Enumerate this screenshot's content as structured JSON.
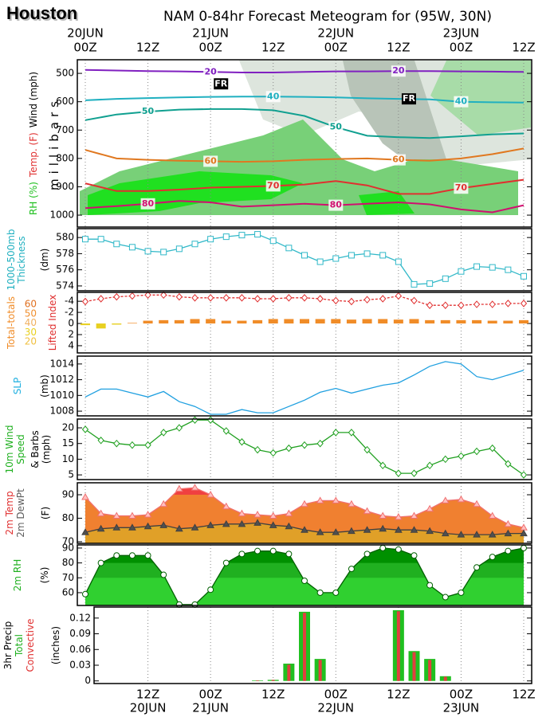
{
  "location": "Houston",
  "title": "NAM 0-84hr Forecast Meteogram for (95W, 30N)",
  "time_axis": {
    "xlim": [
      0,
      84
    ],
    "top_ticks": [
      {
        "value": 0,
        "label": "00Z"
      },
      {
        "value": 12,
        "label": "12Z"
      },
      {
        "value": 24,
        "label": "00Z"
      },
      {
        "value": 36,
        "label": "12Z"
      },
      {
        "value": 48,
        "label": "00Z"
      },
      {
        "value": 60,
        "label": "12Z"
      },
      {
        "value": 72,
        "label": "00Z"
      },
      {
        "value": 84,
        "label": "12Z"
      }
    ],
    "top_dates": [
      {
        "value": 0,
        "label": "20JUN"
      },
      {
        "value": 24,
        "label": "21JUN"
      },
      {
        "value": 48,
        "label": "22JUN"
      },
      {
        "value": 72,
        "label": "23JUN"
      }
    ],
    "bottom_ticks": [
      {
        "value": 12,
        "label": "12Z"
      },
      {
        "value": 24,
        "label": "00Z"
      },
      {
        "value": 36,
        "label": "12Z"
      },
      {
        "value": 48,
        "label": "00Z"
      },
      {
        "value": 60,
        "label": "12Z"
      },
      {
        "value": 72,
        "label": "00Z"
      },
      {
        "value": 84,
        "label": "12Z"
      }
    ],
    "bottom_dates": [
      {
        "value": 12,
        "label": "20JUN"
      },
      {
        "value": 24,
        "label": "21JUN"
      },
      {
        "value": 48,
        "label": "22JUN"
      },
      {
        "value": 72,
        "label": "23JUN"
      }
    ]
  },
  "x": [
    0,
    3,
    6,
    9,
    12,
    15,
    18,
    21,
    24,
    27,
    30,
    33,
    36,
    39,
    42,
    45,
    48,
    51,
    54,
    57,
    60,
    63,
    66,
    69,
    72,
    75,
    78,
    81,
    84
  ],
  "chart_data": [
    {
      "type": "contour",
      "ylabels": [
        [
          {
            "text": "RH (%)",
            "color": "#20c020"
          },
          {
            "text": "Temp. (F)",
            "color": "#e03030"
          },
          {
            "text": "Wind (mph)",
            "color": "#000000"
          }
        ],
        [
          {
            "text": "millibars",
            "color": "#000000"
          }
        ]
      ],
      "ylim": [
        452,
        1042
      ],
      "y_inverted": true,
      "yticks": [
        500,
        600,
        700,
        800,
        900,
        1000
      ],
      "x": [
        0,
        6,
        12,
        18,
        24,
        30,
        36,
        42,
        48,
        54,
        60,
        66,
        72,
        78,
        84
      ],
      "series": [
        {
          "label": "20",
          "color": "#8020c0",
          "values": [
            488,
            490,
            492,
            493,
            495,
            497,
            497,
            495,
            493,
            493,
            492,
            492,
            493,
            494,
            495
          ]
        },
        {
          "label": "40",
          "color": "#20b0c0",
          "values": [
            595,
            590,
            587,
            585,
            583,
            582,
            582,
            583,
            585,
            588,
            590,
            592,
            600,
            602,
            603
          ]
        },
        {
          "label": "50",
          "color": "#10a090",
          "values": [
            665,
            645,
            635,
            628,
            626,
            626,
            630,
            650,
            690,
            720,
            725,
            728,
            722,
            715,
            712
          ]
        },
        {
          "label": "60",
          "color": "#e07820",
          "values": [
            770,
            800,
            805,
            808,
            810,
            812,
            810,
            805,
            802,
            800,
            805,
            808,
            800,
            785,
            765
          ]
        },
        {
          "label": "70",
          "color": "#e03030",
          "values": [
            888,
            915,
            915,
            910,
            903,
            900,
            897,
            892,
            880,
            895,
            925,
            925,
            905,
            890,
            875
          ]
        },
        {
          "label": "80",
          "color": "#d01070",
          "values": [
            975,
            968,
            960,
            950,
            955,
            970,
            965,
            960,
            965,
            960,
            955,
            962,
            980,
            990,
            965
          ]
        }
      ],
      "annotations": [
        {
          "text": "FR",
          "x": 26,
          "y": 537
        },
        {
          "text": "FR",
          "x": 62,
          "y": 590
        }
      ]
    },
    {
      "type": "line",
      "ylabels": [
        [
          {
            "text": "1000-500mb",
            "color": "#20b0c0"
          }
        ],
        [
          {
            "text": "Thickness",
            "color": "#20b0c0"
          }
        ],
        [
          {
            "text": "(dm)",
            "color": "#000000"
          }
        ]
      ],
      "ylim": [
        573.4,
        581.1
      ],
      "yticks": [
        574,
        576,
        578,
        580
      ],
      "series": [
        {
          "values": [
            579.8,
            579.8,
            579.2,
            578.8,
            578.3,
            578.2,
            578.6,
            579.2,
            579.8,
            580.1,
            580.3,
            580.4,
            579.6,
            578.7,
            577.8,
            577.0,
            577.4,
            577.8,
            578.0,
            577.8,
            577.0,
            574.2,
            574.3,
            574.9,
            575.8,
            576.4,
            576.3,
            576.0,
            575.2
          ],
          "color": "#30b8c8",
          "marker": "square",
          "marker_fill": "#ffffff"
        }
      ]
    },
    {
      "type": "combo",
      "ylabels": [
        [
          {
            "text": "Total-totals",
            "color": "#f08c28"
          }
        ],
        [
          {
            "text": "Lifted Index",
            "color": "#e03030"
          }
        ]
      ],
      "ylim": [
        -5.6,
        5.3
      ],
      "y_inverted": true,
      "yticks": [
        -4,
        -2,
        0,
        2,
        4
      ],
      "y2lim": [
        8.1,
        72.8
      ],
      "y2ticks": [
        20,
        30,
        40,
        50,
        60
      ],
      "y2tick_colors": [
        "#f0c040",
        "#e8d020",
        "#f0b060",
        "#f09030",
        "#e07020"
      ],
      "series": [
        {
          "style": "bar",
          "values": [
            0.3,
            0.9,
            0.2,
            -0.1,
            -0.5,
            -0.6,
            -0.6,
            -0.8,
            -0.8,
            -0.5,
            -0.5,
            -0.6,
            -0.8,
            -0.8,
            -0.8,
            -0.8,
            -0.8,
            -0.7,
            -0.8,
            -0.8,
            -0.7,
            -0.8,
            -0.6,
            -0.6,
            -0.6,
            -0.6,
            -0.5,
            -0.5,
            -0.6
          ],
          "color": "#f08c28",
          "color_positive": "#e8d020"
        },
        {
          "style": "line",
          "axis": "y2",
          "values": [
            63,
            66,
            68,
            69,
            70,
            70,
            68,
            67,
            67,
            67,
            67,
            66,
            66,
            67,
            67,
            66,
            64,
            63,
            65,
            66,
            69,
            64,
            59,
            59,
            59,
            60,
            60,
            61,
            61
          ],
          "color": "#e03030",
          "dash": true,
          "marker": "diamond",
          "marker_fill": "#ffffff"
        }
      ]
    },
    {
      "type": "line",
      "ylabels": [
        [
          {
            "text": "SLP",
            "color": "#20b0e0"
          }
        ],
        [
          {
            "text": "(mb)",
            "color": "#000000"
          }
        ]
      ],
      "ylim": [
        1007.4,
        1015
      ],
      "yticks": [
        1008,
        1010,
        1012,
        1014
      ],
      "series": [
        {
          "values": [
            1009.8,
            1010.8,
            1010.8,
            1010.3,
            1009.8,
            1010.5,
            1009.2,
            1008.6,
            1007.6,
            1007.6,
            1008.2,
            1007.8,
            1007.8,
            1008.6,
            1009.4,
            1010.4,
            1010.9,
            1010.3,
            1010.8,
            1011.3,
            1011.6,
            1012.6,
            1013.7,
            1014.3,
            1014.0,
            1012.4,
            1012.0,
            1012.6,
            1013.2
          ],
          "color": "#20a0e0"
        }
      ]
    },
    {
      "type": "line",
      "ylabels": [
        [
          {
            "text": "10m Wind",
            "color": "#20b020"
          }
        ],
        [
          {
            "text": "Speed",
            "color": "#20b020"
          }
        ],
        [
          {
            "text": "& Barbs",
            "color": "#000000"
          }
        ],
        [
          {
            "text": "(mph)",
            "color": "#000000"
          }
        ]
      ],
      "ylim": [
        3.5,
        22.8
      ],
      "yticks": [
        5,
        10,
        15,
        20
      ],
      "series": [
        {
          "values": [
            19.5,
            16,
            15,
            14.5,
            14.5,
            18.5,
            20,
            22.5,
            22.5,
            19,
            15.5,
            13,
            12,
            13.5,
            14.5,
            15,
            18.5,
            18.5,
            13,
            8,
            5.5,
            5.5,
            8,
            10,
            11,
            12.5,
            13.5,
            8.5,
            5
          ],
          "color": "#20a020",
          "marker": "diamond",
          "marker_fill": "#ffffff"
        }
      ]
    },
    {
      "type": "area",
      "ylabels": [
        [
          {
            "text": "2m Temp",
            "color": "#e03030"
          }
        ],
        [
          {
            "text": "2m DewPt",
            "color": "#606060"
          }
        ],
        [
          {
            "text": "(F)",
            "color": "#000000"
          }
        ]
      ],
      "ylim": [
        69.3,
        95.1
      ],
      "yticks": [
        70,
        80,
        90
      ],
      "series": [
        {
          "style": "area",
          "values": [
            89,
            82,
            81,
            81,
            81.5,
            86,
            92.5,
            93,
            90,
            85,
            82,
            81.5,
            81,
            82,
            86,
            87.5,
            87.5,
            86,
            83,
            81,
            80.5,
            81,
            84,
            87.5,
            88,
            86,
            81,
            77.5,
            76
          ],
          "color": "#f07070",
          "fill": "#f08030",
          "highlight_above": 90,
          "highlight_color": "#f04040",
          "marker": "triangle",
          "marker_fill": "#ffc0c0"
        },
        {
          "style": "area",
          "values": [
            74,
            75.5,
            76,
            76,
            76.5,
            77,
            75.5,
            76,
            77,
            77.5,
            77.5,
            78,
            77,
            76.5,
            75,
            74,
            74,
            74.5,
            75,
            75.5,
            75,
            75,
            74.5,
            73.5,
            73,
            73,
            73,
            73.5,
            73.5
          ],
          "color": "#404040",
          "fill": "#e0a028",
          "marker": "triangle",
          "marker_fill": "#505050"
        }
      ]
    },
    {
      "type": "area",
      "ylabels": [
        [
          {
            "text": "2m RH",
            "color": "#20b020"
          }
        ],
        [
          {
            "text": "(%)",
            "color": "#000000"
          }
        ]
      ],
      "ylim": [
        51.4,
        92.1
      ],
      "yticks": [
        60,
        70,
        80,
        90
      ],
      "series": [
        {
          "style": "area",
          "values": [
            59,
            80,
            85,
            85,
            85,
            72,
            52,
            52,
            62,
            80,
            86,
            88,
            88,
            86,
            68,
            60,
            60,
            76,
            86,
            90,
            89,
            85,
            65,
            57,
            60,
            77,
            84,
            88,
            90
          ],
          "color": "#006000",
          "fill": "#30d030",
          "bands": [
            {
              "above": 70,
              "color": "#20b020"
            },
            {
              "above": 80,
              "color": "#009000"
            }
          ],
          "marker": "circle",
          "marker_fill": "#ffffff"
        }
      ]
    },
    {
      "type": "bar",
      "ylabels": [
        [
          {
            "text": "3hr Precip",
            "color": "#000000"
          }
        ],
        [
          {
            "text": "Total",
            "color": "#20b020"
          }
        ],
        [
          {
            "text": "Convective",
            "color": "#e03030"
          }
        ],
        [
          {
            "text": "(inches)",
            "color": "#000000"
          }
        ]
      ],
      "ylim": [
        -0.005,
        0.141
      ],
      "yticks": [
        0,
        0.03,
        0.06,
        0.09,
        0.12
      ],
      "series": [
        {
          "style": "bar",
          "values": [
            0,
            0,
            0,
            0,
            0,
            0,
            0,
            0,
            0,
            0,
            0,
            0.001,
            0.002,
            0.033,
            0.132,
            0.042,
            0,
            0,
            0,
            0,
            0.135,
            0.057,
            0.042,
            0.009,
            0,
            0,
            0,
            0,
            0
          ],
          "color": "#20c020"
        },
        {
          "style": "bar",
          "values": [
            0,
            0,
            0,
            0,
            0,
            0,
            0,
            0,
            0,
            0,
            0,
            0.001,
            0.002,
            0.031,
            0.13,
            0.04,
            0,
            0,
            0,
            0,
            0.133,
            0.055,
            0.04,
            0.008,
            0,
            0,
            0,
            0,
            0
          ],
          "color": "#e04040"
        }
      ]
    }
  ]
}
